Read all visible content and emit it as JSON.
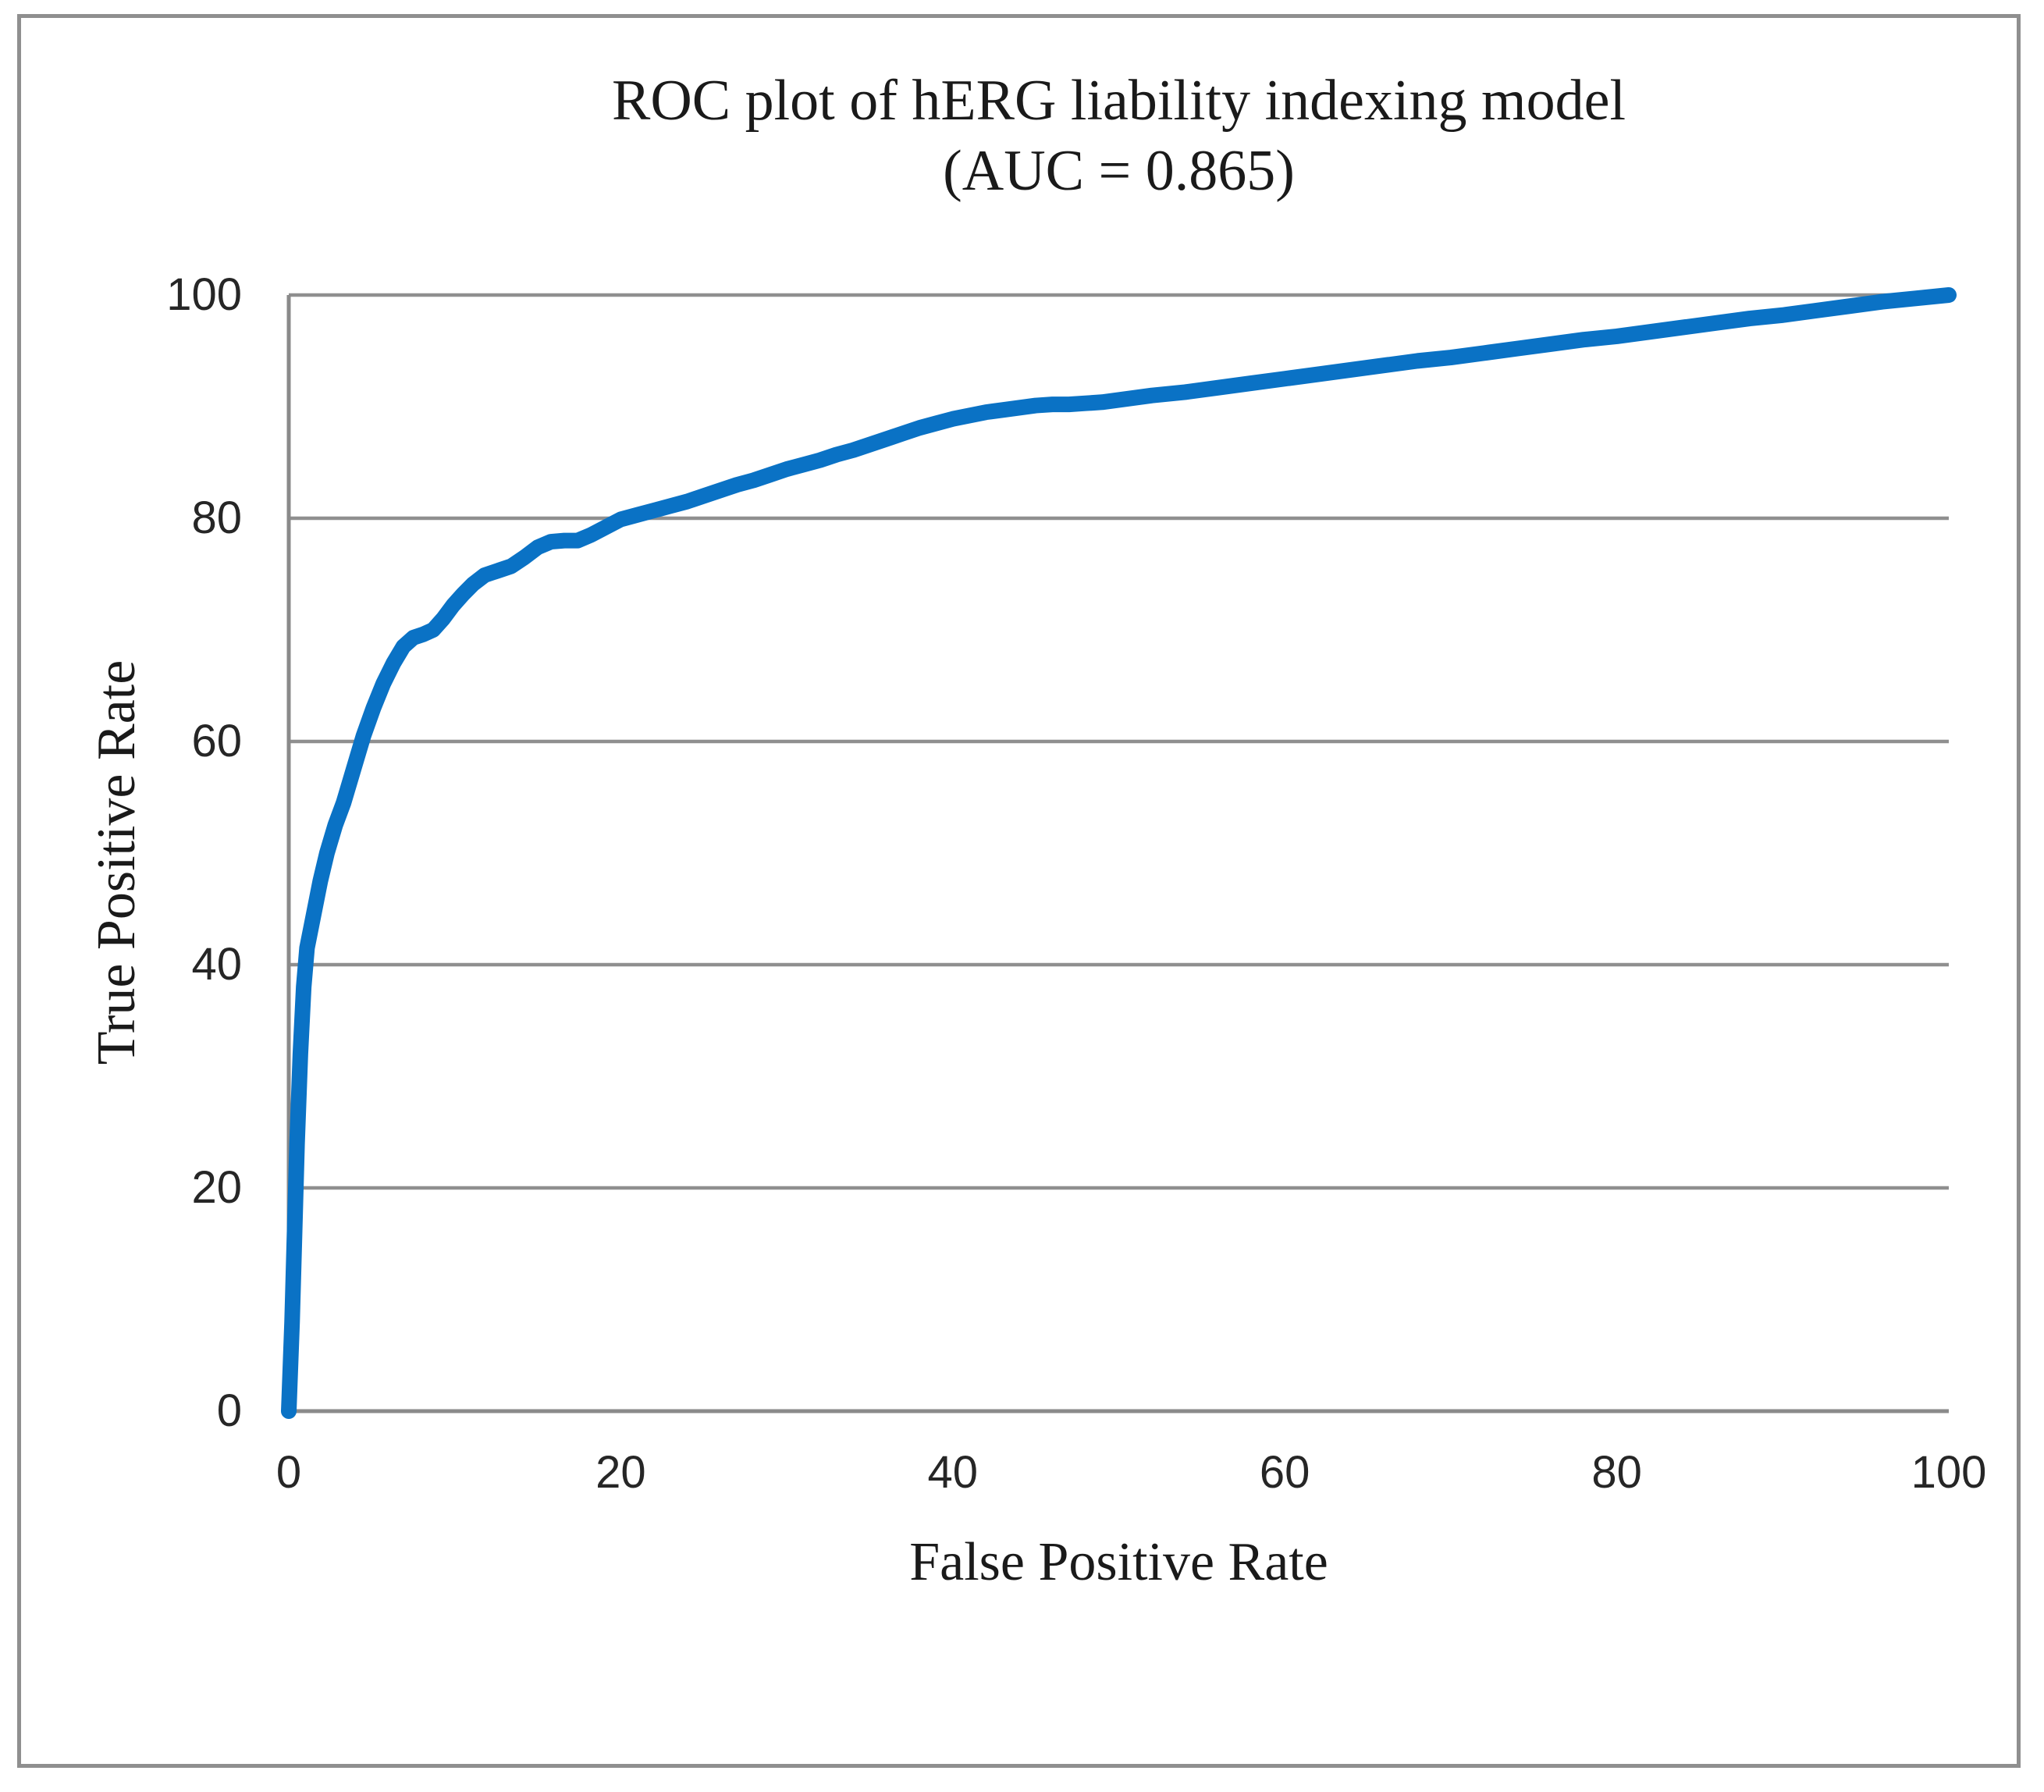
{
  "figure": {
    "title_line1": "ROC plot of hERG liability indexing model",
    "title_line2": "(AUC = 0.865)"
  },
  "colors": {
    "curve": "#0a72c5",
    "grid": "#8f8f8f",
    "axis": "#8a8a8a",
    "frame": "#8f8f8f",
    "text": "#1a1a1a"
  },
  "chart_data": {
    "type": "line",
    "title": "ROC plot of hERG liability indexing model (AUC = 0.865)",
    "auc_label": "AUC = 0.865",
    "auc": 0.865,
    "xlabel": "False Positive Rate",
    "ylabel": "True Positive Rate",
    "xlim": [
      0,
      100
    ],
    "ylim": [
      0,
      100
    ],
    "x_ticks": [
      0,
      20,
      40,
      60,
      80,
      100
    ],
    "y_ticks": [
      0,
      20,
      40,
      60,
      80,
      100
    ],
    "grid": "horizontal-only",
    "legend_position": "none",
    "series": [
      {
        "name": "ROC curve",
        "color": "#0a72c5",
        "points": [
          [
            0,
            0
          ],
          [
            0.2,
            8
          ],
          [
            0.35,
            16
          ],
          [
            0.5,
            24
          ],
          [
            0.7,
            32
          ],
          [
            0.9,
            38
          ],
          [
            1.1,
            41.5
          ],
          [
            1.5,
            44.5
          ],
          [
            1.9,
            47.5
          ],
          [
            2.3,
            50
          ],
          [
            2.8,
            52.5
          ],
          [
            3.3,
            54.5
          ],
          [
            3.9,
            57.5
          ],
          [
            4.5,
            60.5
          ],
          [
            5.1,
            63
          ],
          [
            5.7,
            65.2
          ],
          [
            6.3,
            67
          ],
          [
            6.9,
            68.5
          ],
          [
            7.5,
            69.3
          ],
          [
            8.1,
            69.6
          ],
          [
            8.7,
            70
          ],
          [
            9.3,
            71
          ],
          [
            9.9,
            72.2
          ],
          [
            10.5,
            73.2
          ],
          [
            11.1,
            74.1
          ],
          [
            11.8,
            74.9
          ],
          [
            12.6,
            75.3
          ],
          [
            13.4,
            75.7
          ],
          [
            14.2,
            76.5
          ],
          [
            15,
            77.4
          ],
          [
            15.8,
            77.9
          ],
          [
            16.6,
            78
          ],
          [
            17.4,
            78
          ],
          [
            18.2,
            78.5
          ],
          [
            19.1,
            79.2
          ],
          [
            20,
            79.9
          ],
          [
            21,
            80.3
          ],
          [
            22,
            80.7
          ],
          [
            23,
            81.1
          ],
          [
            24,
            81.5
          ],
          [
            25,
            82
          ],
          [
            26,
            82.5
          ],
          [
            27,
            83
          ],
          [
            28,
            83.4
          ],
          [
            29,
            83.9
          ],
          [
            30,
            84.4
          ],
          [
            31,
            84.8
          ],
          [
            32,
            85.2
          ],
          [
            33,
            85.7
          ],
          [
            34,
            86.1
          ],
          [
            35,
            86.6
          ],
          [
            36,
            87.1
          ],
          [
            37,
            87.6
          ],
          [
            38,
            88.1
          ],
          [
            39,
            88.5
          ],
          [
            40,
            88.9
          ],
          [
            41,
            89.2
          ],
          [
            42,
            89.5
          ],
          [
            43,
            89.7
          ],
          [
            44,
            89.9
          ],
          [
            45,
            90.1
          ],
          [
            46,
            90.2
          ],
          [
            47,
            90.2
          ],
          [
            48,
            90.3
          ],
          [
            49,
            90.4
          ],
          [
            50,
            90.6
          ],
          [
            52,
            91
          ],
          [
            54,
            91.3
          ],
          [
            56,
            91.7
          ],
          [
            58,
            92.1
          ],
          [
            60,
            92.5
          ],
          [
            62,
            92.9
          ],
          [
            64,
            93.3
          ],
          [
            66,
            93.7
          ],
          [
            68,
            94.1
          ],
          [
            70,
            94.4
          ],
          [
            72,
            94.8
          ],
          [
            74,
            95.2
          ],
          [
            76,
            95.6
          ],
          [
            78,
            96
          ],
          [
            80,
            96.3
          ],
          [
            82,
            96.7
          ],
          [
            84,
            97.1
          ],
          [
            86,
            97.5
          ],
          [
            88,
            97.9
          ],
          [
            90,
            98.2
          ],
          [
            92,
            98.6
          ],
          [
            94,
            99
          ],
          [
            96,
            99.4
          ],
          [
            98,
            99.7
          ],
          [
            100,
            100
          ]
        ]
      }
    ]
  }
}
